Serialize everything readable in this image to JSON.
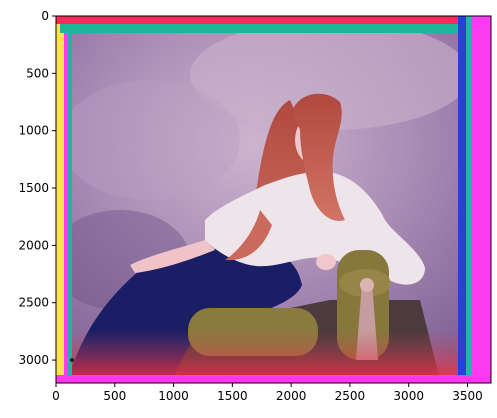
{
  "chart_data": {
    "type": "image",
    "title": "",
    "xlabel": "",
    "ylabel": "",
    "xlim": [
      0,
      3700
    ],
    "ylim": [
      3200,
      0
    ],
    "x_ticks": [
      {
        "value": 0,
        "label": "0"
      },
      {
        "value": 500,
        "label": "500"
      },
      {
        "value": 1000,
        "label": "1000"
      },
      {
        "value": 1500,
        "label": "1500"
      },
      {
        "value": 2000,
        "label": "2000"
      },
      {
        "value": 2500,
        "label": "2500"
      },
      {
        "value": 3000,
        "label": "3000"
      },
      {
        "value": 3500,
        "label": "3500"
      }
    ],
    "y_ticks": [
      {
        "value": 0,
        "label": "0"
      },
      {
        "value": 500,
        "label": "500"
      },
      {
        "value": 1000,
        "label": "1000"
      },
      {
        "value": 1500,
        "label": "1500"
      },
      {
        "value": 2000,
        "label": "2000"
      },
      {
        "value": 2500,
        "label": "2500"
      },
      {
        "value": 3000,
        "label": "3000"
      }
    ],
    "grid": false
  },
  "image": {
    "colors": {
      "background_purple": "#9c80ad",
      "background_light": "#c8b0cc",
      "hair": "#c0594e",
      "skin": "#f1c6c8",
      "blouse": "#efe6ea",
      "skirt": "#1b1c63",
      "cushion": "#8a7a3d",
      "tassel": "#c49a9a",
      "border_green": "#1fb59c",
      "border_magenta": "#ff3af1",
      "border_red": "#e8213a",
      "border_yellow": "#ffe54a",
      "border_blue": "#2540d9"
    }
  }
}
